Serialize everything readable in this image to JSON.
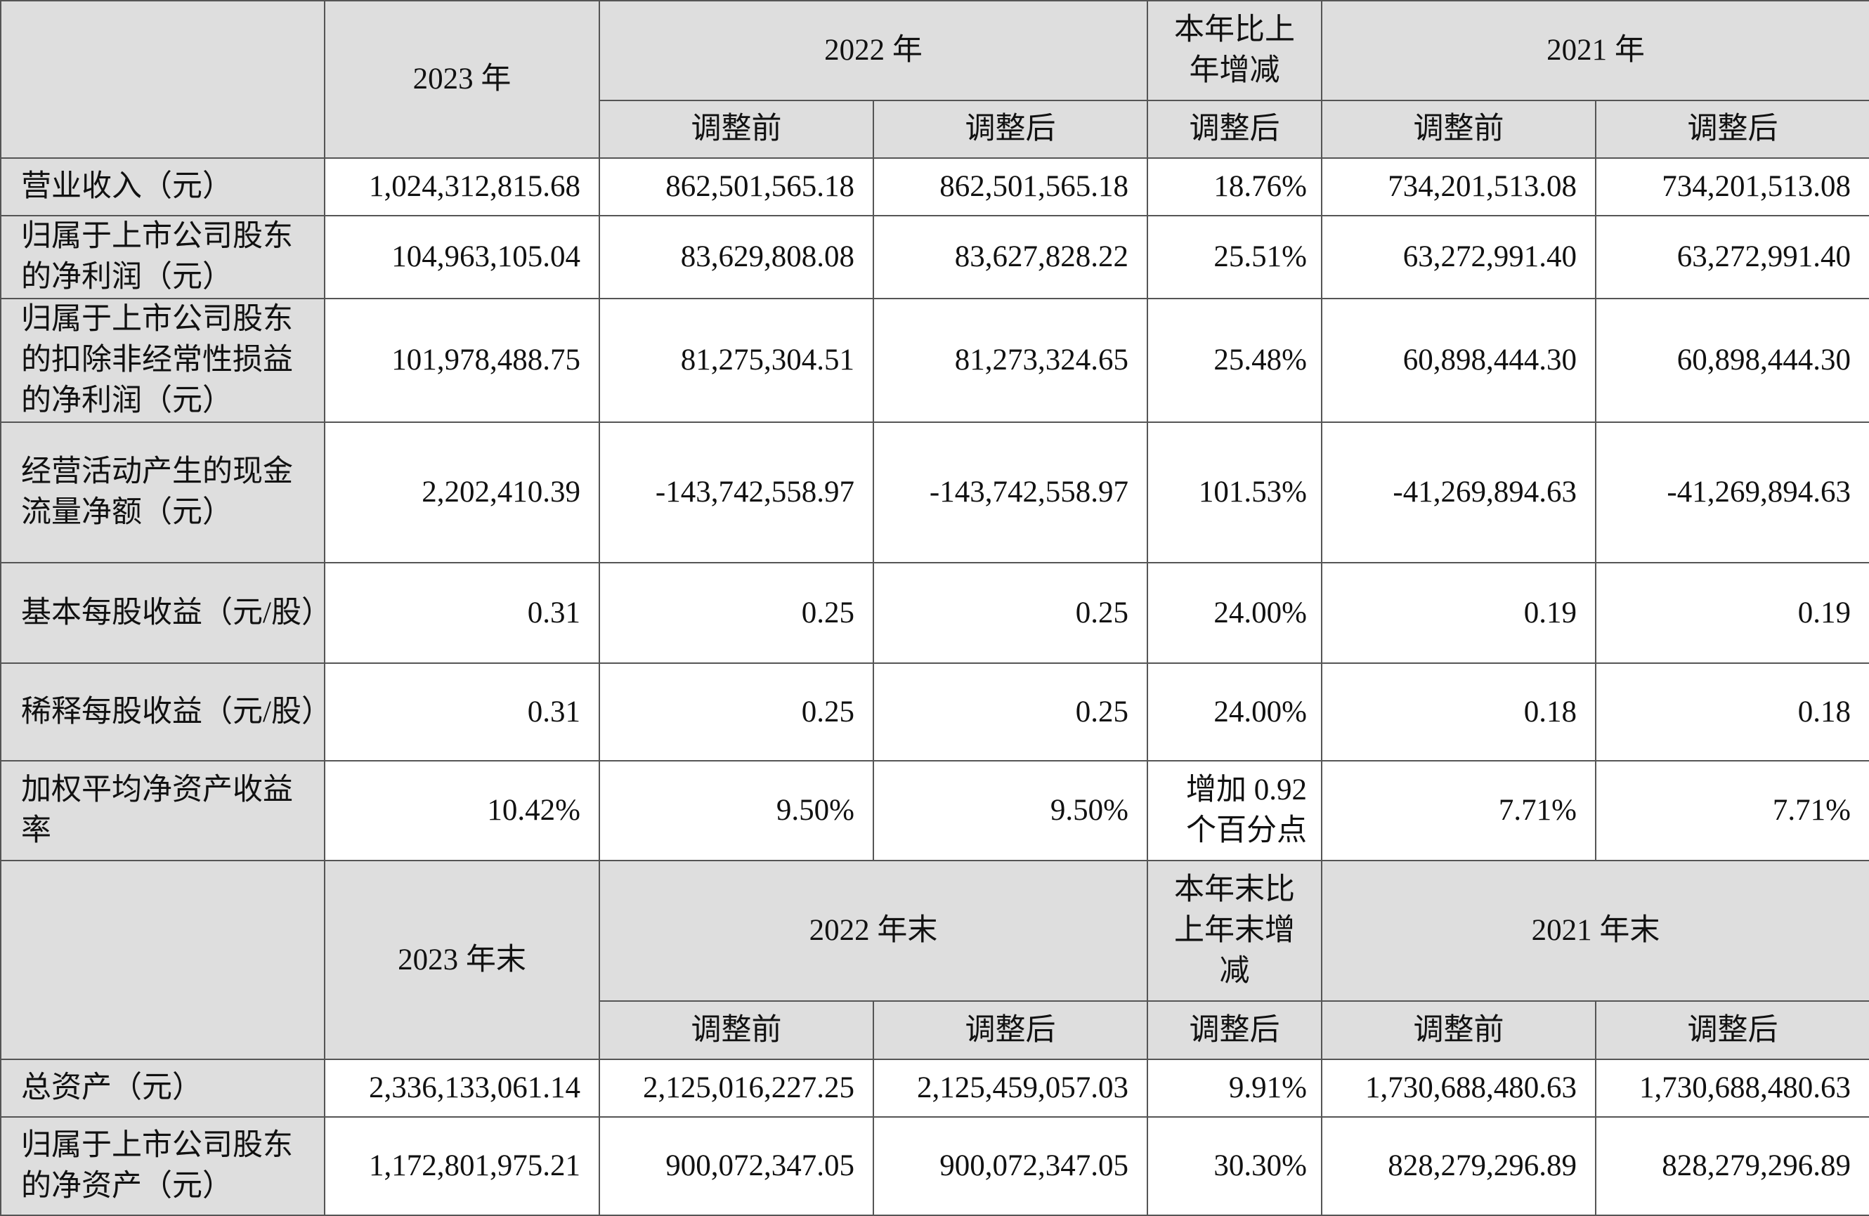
{
  "table": {
    "sections": [
      {
        "header": {
          "row1": [
            "2023 年",
            "2022 年",
            "本年比上年增减",
            "2021 年"
          ],
          "row2": [
            "调整前",
            "调整后",
            "调整后",
            "调整前",
            "调整后"
          ]
        },
        "rows": [
          [
            "营业收入（元）",
            "1,024,312,815.68",
            "862,501,565.18",
            "862,501,565.18",
            "18.76%",
            "734,201,513.08",
            "734,201,513.08"
          ],
          [
            "归属于上市公司股东的净利润（元）",
            "104,963,105.04",
            "83,629,808.08",
            "83,627,828.22",
            "25.51%",
            "63,272,991.40",
            "63,272,991.40"
          ],
          [
            "归属于上市公司股东的扣除非经常性损益的净利润（元）",
            "101,978,488.75",
            "81,275,304.51",
            "81,273,324.65",
            "25.48%",
            "60,898,444.30",
            "60,898,444.30"
          ],
          [
            "经营活动产生的现金流量净额（元）",
            "2,202,410.39",
            "-143,742,558.97",
            "-143,742,558.97",
            "101.53%",
            "-41,269,894.63",
            "-41,269,894.63"
          ],
          [
            "基本每股收益（元/股）",
            "0.31",
            "0.25",
            "0.25",
            "24.00%",
            "0.19",
            "0.19"
          ],
          [
            "稀释每股收益（元/股）",
            "0.31",
            "0.25",
            "0.25",
            "24.00%",
            "0.18",
            "0.18"
          ],
          [
            "加权平均净资产收益率",
            "10.42%",
            "9.50%",
            "9.50%",
            "增加 0.92 个百分点",
            "7.71%",
            "7.71%"
          ]
        ]
      },
      {
        "header": {
          "row1": [
            "2023 年末",
            "2022 年末",
            "本年末比上年末增减",
            "2021 年末"
          ],
          "row2": [
            "调整前",
            "调整后",
            "调整后",
            "调整前",
            "调整后"
          ]
        },
        "rows": [
          [
            "总资产（元）",
            "2,336,133,061.14",
            "2,125,016,227.25",
            "2,125,459,057.03",
            "9.91%",
            "1,730,688,480.63",
            "1,730,688,480.63"
          ],
          [
            "归属于上市公司股东的净资产（元）",
            "1,172,801,975.21",
            "900,072,347.05",
            "900,072,347.05",
            "30.30%",
            "828,279,296.89",
            "828,279,296.89"
          ]
        ]
      }
    ]
  }
}
